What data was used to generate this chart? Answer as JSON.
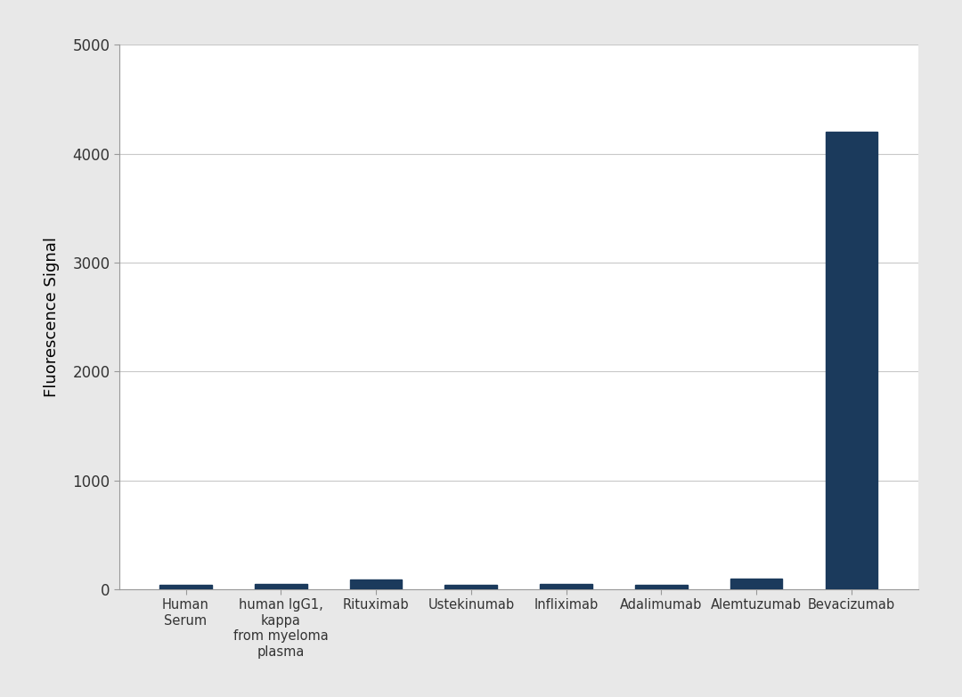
{
  "categories": [
    "Human\nSerum",
    "human IgG1,\nkappa\nfrom myeloma\nplasma",
    "Rituximab",
    "Ustekinumab",
    "Infliximab",
    "Adalimumab",
    "Alemtuzumab",
    "Bevacizumab"
  ],
  "values": [
    40,
    50,
    90,
    38,
    50,
    38,
    95,
    4200
  ],
  "bar_color": "#1b3a5c",
  "ylabel": "Fluorescence Signal",
  "ylim": [
    0,
    5000
  ],
  "yticks": [
    0,
    1000,
    2000,
    3000,
    4000,
    5000
  ],
  "background_color": "#e8e8e8",
  "plot_bg_color": "#ffffff",
  "grid_color": "#c8c8c8",
  "bar_width": 0.55
}
